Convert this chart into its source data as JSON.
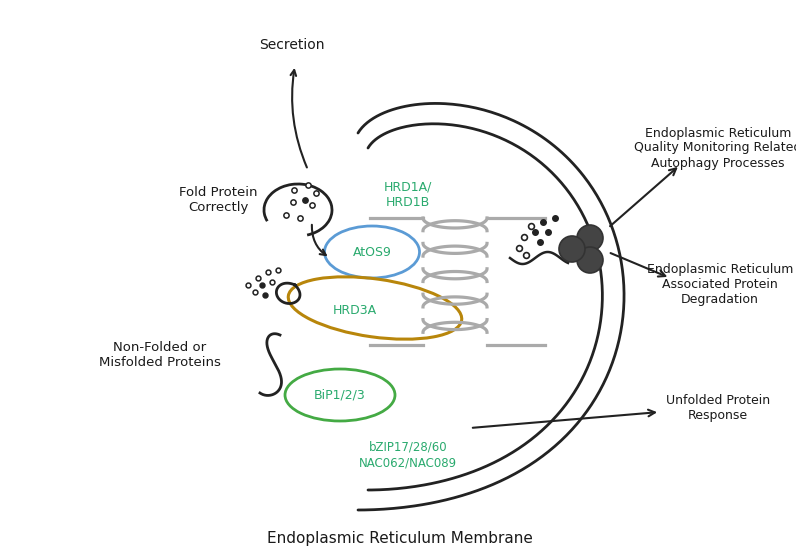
{
  "bg_color": "#ffffff",
  "text_color": "#1a1a1a",
  "green_color": "#2aaa6e",
  "blue_color": "#5b9bd5",
  "gold_color": "#b8860b",
  "green_bip": "#44aa44",
  "arrow_color": "#222222",
  "membrane_color": "#222222",
  "coil_color": "#aaaaaa",
  "dark_circle_color": "#444444",
  "title": "Endoplasmic Reticulum Membrane",
  "label_secretion": "Secretion",
  "label_fold": "Fold Protein\nCorrectly",
  "label_nonfolded": "Non-Folded or\nMisfolded Proteins",
  "label_AtOS9": "AtOS9",
  "label_HRD3A": "HRD3A",
  "label_HRD1": "HRD1A/\nHRD1B",
  "label_BiP": "BiP1/2/3",
  "label_bZIP": "bZIP17/28/60\nNAC062/NAC089",
  "label_ER_autophagy": "Endoplasmic Reticulum\nQuality Monitoring Related\nAutophagy Processes",
  "label_ER_degradation": "Endoplasmic Reticulum\nAssociated Protein\nDegradation",
  "label_UPR": "Unfolded Protein\nResponse"
}
